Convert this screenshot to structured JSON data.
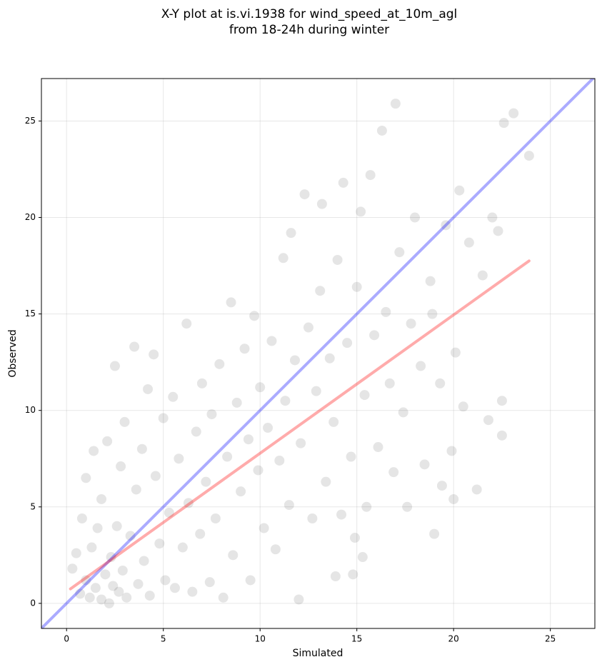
{
  "chart_data": {
    "type": "scatter",
    "title": [
      "X-Y plot at is.vi.1938 for wind_speed_at_10m_agl",
      "from 18-24h during winter"
    ],
    "xlabel": "Simulated",
    "ylabel": "Observed",
    "x": [
      0.3,
      0.5,
      0.7,
      0.8,
      1.0,
      1.0,
      1.2,
      1.3,
      1.4,
      1.5,
      1.6,
      1.8,
      1.8,
      2.0,
      2.1,
      2.2,
      2.3,
      2.4,
      2.5,
      2.6,
      2.7,
      2.8,
      2.9,
      3.0,
      3.1,
      3.3,
      3.5,
      3.6,
      3.7,
      3.9,
      4.0,
      4.2,
      4.3,
      4.5,
      4.6,
      4.8,
      5.0,
      5.1,
      5.3,
      5.5,
      5.6,
      5.8,
      6.0,
      6.2,
      6.3,
      6.5,
      6.7,
      6.9,
      7.0,
      7.2,
      7.4,
      7.5,
      7.7,
      7.9,
      8.1,
      8.3,
      8.5,
      8.6,
      8.8,
      9.0,
      9.2,
      9.4,
      9.5,
      9.7,
      9.9,
      10.0,
      10.2,
      10.4,
      10.6,
      10.8,
      11.0,
      11.2,
      11.3,
      11.5,
      11.6,
      11.8,
      12.0,
      12.1,
      12.3,
      12.5,
      12.7,
      12.9,
      13.1,
      13.2,
      13.4,
      13.6,
      13.8,
      14.0,
      14.2,
      14.3,
      14.5,
      14.7,
      14.9,
      15.0,
      15.2,
      15.4,
      15.5,
      15.7,
      15.9,
      16.1,
      16.3,
      16.5,
      16.7,
      16.9,
      17.0,
      17.2,
      17.4,
      17.6,
      17.8,
      18.0,
      18.3,
      18.5,
      18.8,
      19.0,
      19.3,
      19.6,
      19.9,
      20.1,
      20.3,
      20.5,
      20.8,
      21.2,
      21.5,
      21.8,
      22.0,
      22.3,
      22.6,
      22.5,
      23.1,
      23.9,
      22.5,
      19.4,
      20.0,
      18.9,
      15.3,
      13.9,
      14.8
    ],
    "y": [
      1.8,
      2.6,
      0.5,
      4.4,
      6.5,
      1.2,
      0.3,
      2.9,
      7.9,
      0.8,
      3.9,
      0.2,
      5.4,
      1.5,
      8.4,
      0.0,
      2.4,
      0.9,
      12.3,
      4.0,
      0.6,
      7.1,
      1.7,
      9.4,
      0.3,
      3.5,
      13.3,
      5.9,
      1.0,
      8.0,
      2.2,
      11.1,
      0.4,
      12.9,
      6.6,
      3.1,
      9.6,
      1.2,
      4.7,
      10.7,
      0.8,
      7.5,
      2.9,
      14.5,
      5.2,
      0.6,
      8.9,
      3.6,
      11.4,
      6.3,
      1.1,
      9.8,
      4.4,
      12.4,
      0.3,
      7.6,
      15.6,
      2.5,
      10.4,
      5.8,
      13.2,
      8.5,
      1.2,
      14.9,
      6.9,
      11.2,
      3.9,
      9.1,
      13.6,
      2.8,
      7.4,
      17.9,
      10.5,
      5.1,
      19.2,
      12.6,
      0.2,
      8.3,
      21.2,
      14.3,
      4.4,
      11.0,
      16.2,
      20.7,
      6.3,
      12.7,
      9.4,
      17.8,
      4.6,
      21.8,
      13.5,
      7.6,
      3.4,
      16.4,
      20.3,
      10.8,
      5.0,
      22.2,
      13.9,
      8.1,
      24.5,
      15.1,
      11.4,
      6.8,
      25.9,
      18.2,
      9.9,
      5.0,
      14.5,
      20.0,
      12.3,
      7.2,
      16.7,
      3.6,
      11.4,
      19.6,
      7.9,
      13.0,
      21.4,
      10.2,
      18.7,
      5.9,
      17.0,
      9.5,
      20.0,
      19.3,
      24.9,
      8.7,
      25.4,
      23.2,
      10.5,
      6.1,
      5.4,
      15.0,
      2.4,
      1.4,
      1.5
    ],
    "point_color": "#000000",
    "xlim": [
      -1.3,
      27.3
    ],
    "ylim": [
      -1.3,
      27.2
    ],
    "xticks": [
      0,
      5,
      10,
      15,
      20,
      25
    ],
    "yticks": [
      0,
      5,
      10,
      15,
      20,
      25
    ],
    "grid": true,
    "lines": [
      {
        "color": "#0000ff",
        "x": [
          -1.3,
          27.3
        ],
        "y": [
          -1.3,
          27.3
        ]
      },
      {
        "color": "#ff0000",
        "x": [
          0.2,
          23.9
        ],
        "y": [
          0.75,
          17.75
        ]
      }
    ]
  }
}
